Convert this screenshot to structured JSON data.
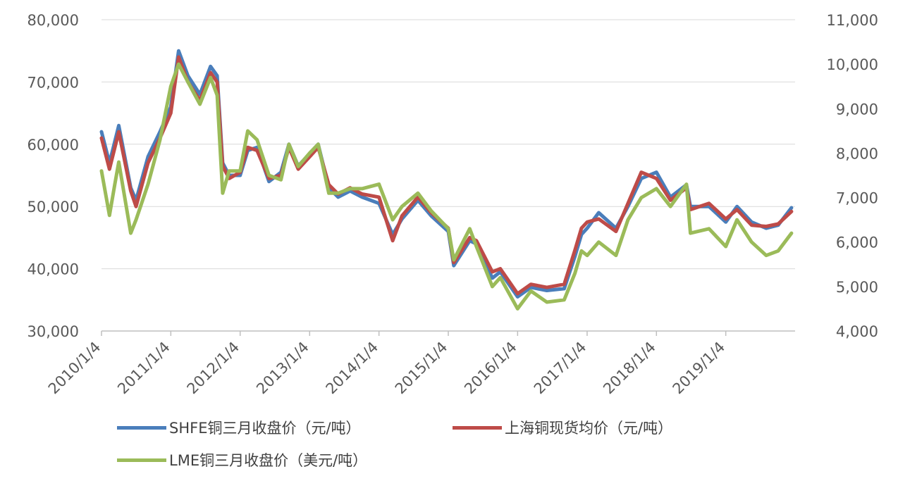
{
  "chart_data": {
    "type": "line",
    "x_ticks": [
      "2010/1/4",
      "2011/1/4",
      "2012/1/4",
      "2013/1/4",
      "2014/1/4",
      "2015/1/4",
      "2016/1/4",
      "2017/1/4",
      "2018/1/4",
      "2019/1/4"
    ],
    "y_left": {
      "ylim": [
        30000,
        80000
      ],
      "ticks": [
        "30,000",
        "40,000",
        "50,000",
        "60,000",
        "70,000",
        "80,000"
      ]
    },
    "y_right": {
      "ylim": [
        4000,
        11000
      ],
      "ticks": [
        "4,000",
        "5,000",
        "6,000",
        "7,000",
        "8,000",
        "9,000",
        "10,000",
        "11,000"
      ]
    },
    "grid": true,
    "legend_position": "bottom",
    "series": [
      {
        "name": "SHFE铜三月收盘价（元/吨）",
        "color": "#4a7ebb",
        "axis": "left",
        "points": [
          [
            "2010-01-04",
            62000
          ],
          [
            "2010-02-15",
            57000
          ],
          [
            "2010-04-05",
            63000
          ],
          [
            "2010-06-07",
            53000
          ],
          [
            "2010-07-05",
            51000
          ],
          [
            "2010-09-06",
            58000
          ],
          [
            "2010-11-08",
            62000
          ],
          [
            "2011-01-04",
            66000
          ],
          [
            "2011-02-14",
            75000
          ],
          [
            "2011-04-04",
            71000
          ],
          [
            "2011-06-06",
            68000
          ],
          [
            "2011-08-01",
            72500
          ],
          [
            "2011-09-05",
            71000
          ],
          [
            "2011-10-04",
            57000
          ],
          [
            "2011-11-07",
            55000
          ],
          [
            "2012-01-04",
            55000
          ],
          [
            "2012-02-13",
            59000
          ],
          [
            "2012-04-02",
            59500
          ],
          [
            "2012-06-04",
            54000
          ],
          [
            "2012-08-06",
            55500
          ],
          [
            "2012-09-17",
            60000
          ],
          [
            "2012-11-05",
            56500
          ],
          [
            "2013-01-04",
            58500
          ],
          [
            "2013-02-18",
            60000
          ],
          [
            "2013-04-15",
            53000
          ],
          [
            "2013-06-03",
            51500
          ],
          [
            "2013-08-05",
            52500
          ],
          [
            "2013-10-07",
            51500
          ],
          [
            "2014-01-04",
            50500
          ],
          [
            "2014-03-17",
            45500
          ],
          [
            "2014-05-05",
            48000
          ],
          [
            "2014-07-28",
            51000
          ],
          [
            "2014-10-06",
            48500
          ],
          [
            "2015-01-04",
            46000
          ],
          [
            "2015-02-02",
            40500
          ],
          [
            "2015-04-27",
            44500
          ],
          [
            "2015-06-01",
            44000
          ],
          [
            "2015-08-24",
            38500
          ],
          [
            "2015-10-05",
            39500
          ],
          [
            "2016-01-04",
            35500
          ],
          [
            "2016-03-14",
            37000
          ],
          [
            "2016-06-06",
            36500
          ],
          [
            "2016-09-05",
            36800
          ],
          [
            "2016-11-01",
            42000
          ],
          [
            "2016-12-05",
            45500
          ],
          [
            "2017-01-04",
            46500
          ],
          [
            "2017-03-06",
            49000
          ],
          [
            "2017-06-05",
            46500
          ],
          [
            "2017-08-07",
            50000
          ],
          [
            "2017-10-16",
            54500
          ],
          [
            "2018-01-04",
            55500
          ],
          [
            "2018-03-19",
            51500
          ],
          [
            "2018-06-11",
            53500
          ],
          [
            "2018-07-02",
            50000
          ],
          [
            "2018-10-08",
            50000
          ],
          [
            "2019-01-04",
            47500
          ],
          [
            "2019-03-04",
            50000
          ],
          [
            "2019-05-20",
            47500
          ],
          [
            "2019-08-05",
            46500
          ],
          [
            "2019-10-07",
            47000
          ],
          [
            "2019-12-16",
            49800
          ]
        ]
      },
      {
        "name": "上海铜现货均价（元/吨）",
        "color": "#be4b48",
        "axis": "left",
        "points": [
          [
            "2010-01-04",
            61000
          ],
          [
            "2010-02-15",
            56000
          ],
          [
            "2010-04-05",
            62000
          ],
          [
            "2010-06-07",
            52500
          ],
          [
            "2010-07-05",
            50000
          ],
          [
            "2010-09-06",
            57000
          ],
          [
            "2010-11-08",
            61000
          ],
          [
            "2011-01-04",
            65000
          ],
          [
            "2011-02-14",
            74000
          ],
          [
            "2011-04-04",
            70000
          ],
          [
            "2011-06-06",
            67000
          ],
          [
            "2011-08-01",
            71500
          ],
          [
            "2011-09-05",
            70000
          ],
          [
            "2011-10-04",
            56500
          ],
          [
            "2011-11-07",
            54500
          ],
          [
            "2012-01-04",
            55500
          ],
          [
            "2012-02-13",
            59500
          ],
          [
            "2012-04-02",
            59000
          ],
          [
            "2012-06-04",
            54500
          ],
          [
            "2012-08-06",
            55000
          ],
          [
            "2012-09-17",
            59500
          ],
          [
            "2012-11-05",
            56000
          ],
          [
            "2013-01-04",
            58000
          ],
          [
            "2013-02-18",
            59500
          ],
          [
            "2013-04-15",
            53500
          ],
          [
            "2013-06-03",
            52000
          ],
          [
            "2013-08-05",
            53000
          ],
          [
            "2013-10-07",
            52000
          ],
          [
            "2014-01-04",
            51500
          ],
          [
            "2014-03-17",
            44500
          ],
          [
            "2014-05-05",
            48500
          ],
          [
            "2014-07-28",
            51500
          ],
          [
            "2014-10-06",
            49000
          ],
          [
            "2015-01-04",
            46500
          ],
          [
            "2015-02-02",
            41000
          ],
          [
            "2015-04-27",
            45000
          ],
          [
            "2015-06-01",
            44500
          ],
          [
            "2015-08-24",
            39500
          ],
          [
            "2015-10-05",
            40000
          ],
          [
            "2016-01-04",
            36000
          ],
          [
            "2016-03-14",
            37500
          ],
          [
            "2016-06-06",
            37000
          ],
          [
            "2016-09-05",
            37500
          ],
          [
            "2016-11-01",
            43000
          ],
          [
            "2016-12-05",
            46500
          ],
          [
            "2017-01-04",
            47500
          ],
          [
            "2017-03-06",
            48000
          ],
          [
            "2017-06-05",
            46000
          ],
          [
            "2017-08-07",
            50500
          ],
          [
            "2017-10-16",
            55500
          ],
          [
            "2018-01-04",
            54500
          ],
          [
            "2018-03-19",
            51000
          ],
          [
            "2018-06-11",
            53000
          ],
          [
            "2018-07-02",
            49500
          ],
          [
            "2018-10-08",
            50500
          ],
          [
            "2019-01-04",
            48000
          ],
          [
            "2019-03-04",
            49500
          ],
          [
            "2019-05-20",
            47000
          ],
          [
            "2019-08-05",
            46800
          ],
          [
            "2019-10-07",
            47200
          ],
          [
            "2019-12-16",
            49200
          ]
        ]
      },
      {
        "name": "LME铜三月收盘价（美元/吨）",
        "color": "#9bbb59",
        "axis": "right",
        "points": [
          [
            "2010-01-04",
            7600
          ],
          [
            "2010-02-15",
            6600
          ],
          [
            "2010-03-15",
            7300
          ],
          [
            "2010-04-05",
            7800
          ],
          [
            "2010-06-07",
            6200
          ],
          [
            "2010-07-05",
            6500
          ],
          [
            "2010-09-06",
            7300
          ],
          [
            "2010-11-08",
            8300
          ],
          [
            "2011-01-04",
            9500
          ],
          [
            "2011-02-14",
            10000
          ],
          [
            "2011-04-04",
            9600
          ],
          [
            "2011-06-06",
            9100
          ],
          [
            "2011-08-01",
            9700
          ],
          [
            "2011-09-05",
            9300
          ],
          [
            "2011-10-04",
            7100
          ],
          [
            "2011-11-07",
            7600
          ],
          [
            "2012-01-04",
            7600
          ],
          [
            "2012-02-13",
            8500
          ],
          [
            "2012-04-02",
            8300
          ],
          [
            "2012-06-04",
            7500
          ],
          [
            "2012-08-06",
            7400
          ],
          [
            "2012-09-17",
            8200
          ],
          [
            "2012-11-05",
            7700
          ],
          [
            "2013-01-04",
            8000
          ],
          [
            "2013-02-18",
            8200
          ],
          [
            "2013-04-15",
            7100
          ],
          [
            "2013-06-03",
            7100
          ],
          [
            "2013-08-05",
            7200
          ],
          [
            "2013-10-07",
            7200
          ],
          [
            "2014-01-04",
            7300
          ],
          [
            "2014-03-17",
            6500
          ],
          [
            "2014-05-05",
            6800
          ],
          [
            "2014-07-28",
            7100
          ],
          [
            "2014-10-06",
            6700
          ],
          [
            "2015-01-04",
            6300
          ],
          [
            "2015-02-02",
            5600
          ],
          [
            "2015-04-27",
            6300
          ],
          [
            "2015-06-01",
            5900
          ],
          [
            "2015-08-24",
            5000
          ],
          [
            "2015-10-05",
            5200
          ],
          [
            "2016-01-04",
            4500
          ],
          [
            "2016-03-14",
            4900
          ],
          [
            "2016-06-06",
            4650
          ],
          [
            "2016-09-05",
            4700
          ],
          [
            "2016-11-01",
            5300
          ],
          [
            "2016-12-05",
            5800
          ],
          [
            "2017-01-04",
            5700
          ],
          [
            "2017-03-06",
            6000
          ],
          [
            "2017-06-05",
            5700
          ],
          [
            "2017-08-07",
            6500
          ],
          [
            "2017-10-16",
            7000
          ],
          [
            "2018-01-04",
            7200
          ],
          [
            "2018-03-19",
            6800
          ],
          [
            "2018-06-11",
            7300
          ],
          [
            "2018-07-02",
            6200
          ],
          [
            "2018-10-08",
            6300
          ],
          [
            "2019-01-04",
            5900
          ],
          [
            "2019-03-04",
            6500
          ],
          [
            "2019-05-20",
            6000
          ],
          [
            "2019-08-05",
            5700
          ],
          [
            "2019-10-07",
            5800
          ],
          [
            "2019-12-16",
            6200
          ]
        ]
      }
    ]
  }
}
